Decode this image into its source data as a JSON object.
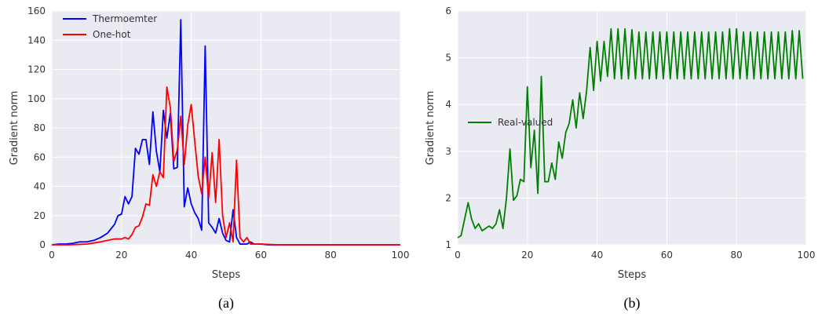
{
  "chart_data": [
    {
      "type": "line",
      "caption": "(a)",
      "xlabel": "Steps",
      "ylabel": "Gradient norm",
      "xlim": [
        0,
        100
      ],
      "ylim": [
        0,
        160
      ],
      "xticks": [
        0,
        20,
        40,
        60,
        80,
        100
      ],
      "yticks": [
        0,
        20,
        40,
        60,
        80,
        100,
        120,
        140,
        160
      ],
      "grid": true,
      "legend": "top-left",
      "series": [
        {
          "name": "Thermoemter",
          "color": "#0000ff",
          "x": [
            0,
            2,
            4,
            6,
            8,
            10,
            12,
            14,
            16,
            18,
            19,
            20,
            21,
            22,
            23,
            24,
            25,
            26,
            27,
            28,
            29,
            30,
            31,
            32,
            33,
            34,
            35,
            36,
            37,
            38,
            39,
            40,
            41,
            42,
            43,
            44,
            45,
            46,
            47,
            48,
            49,
            50,
            51,
            52,
            53,
            54,
            55,
            56,
            57,
            58,
            60,
            62,
            65,
            70,
            80,
            90,
            100
          ],
          "values": [
            0,
            0.5,
            0.5,
            1,
            2,
            2,
            3,
            5,
            8,
            14,
            20,
            21,
            33,
            28,
            33,
            66,
            62,
            72,
            72,
            55,
            91,
            64,
            50,
            92,
            73,
            90,
            52,
            53,
            154,
            26,
            39,
            28,
            22,
            18,
            10,
            136,
            15,
            12,
            8,
            18,
            8,
            3,
            2,
            24,
            5,
            0.5,
            0.5,
            0.5,
            2,
            0.5,
            0.5,
            0,
            0,
            0,
            0,
            0,
            0
          ]
        },
        {
          "name": "One-hot",
          "color": "#ff0000",
          "x": [
            0,
            5,
            10,
            14,
            16,
            18,
            20,
            21,
            22,
            23,
            24,
            25,
            26,
            27,
            28,
            29,
            30,
            31,
            32,
            33,
            34,
            35,
            36,
            37,
            38,
            39,
            40,
            41,
            42,
            43,
            44,
            45,
            46,
            47,
            48,
            49,
            50,
            51,
            52,
            53,
            54,
            55,
            56,
            57,
            60,
            65,
            70,
            80,
            90,
            100
          ],
          "values": [
            0,
            0,
            0.5,
            2,
            3,
            4,
            4,
            5,
            4,
            7,
            12,
            13,
            19,
            28,
            27,
            48,
            40,
            50,
            46,
            108,
            94,
            57,
            65,
            88,
            55,
            82,
            96,
            71,
            47,
            35,
            60,
            32,
            63,
            29,
            72,
            20,
            5,
            15,
            2,
            58,
            5,
            2,
            5,
            0.5,
            0.5,
            0,
            0,
            0,
            0,
            0
          ]
        }
      ]
    },
    {
      "type": "line",
      "caption": "(b)",
      "xlabel": "Steps",
      "ylabel": "Gradient norm",
      "xlim": [
        0,
        100
      ],
      "ylim": [
        1,
        6
      ],
      "xticks": [
        0,
        20,
        40,
        60,
        80,
        100
      ],
      "yticks": [
        1,
        2,
        3,
        4,
        5,
        6
      ],
      "grid": true,
      "legend": "center-left",
      "series": [
        {
          "name": "Real-valued",
          "color": "#008000",
          "x": [
            0,
            1,
            2,
            3,
            4,
            5,
            6,
            7,
            8,
            9,
            10,
            11,
            12,
            13,
            14,
            15,
            16,
            17,
            18,
            19,
            20,
            21,
            22,
            23,
            24,
            25,
            26,
            27,
            28,
            29,
            30,
            31,
            32,
            33,
            34,
            35,
            36,
            37,
            38,
            39,
            40,
            41,
            42,
            43,
            44,
            45,
            46,
            47,
            48,
            49,
            50,
            51,
            52,
            53,
            54,
            55,
            56,
            57,
            58,
            59,
            60,
            61,
            62,
            63,
            64,
            65,
            66,
            67,
            68,
            69,
            70,
            71,
            72,
            73,
            74,
            75,
            76,
            77,
            78,
            79,
            80,
            81,
            82,
            83,
            84,
            85,
            86,
            87,
            88,
            89,
            90,
            91,
            92,
            93,
            94,
            95,
            96,
            97,
            98,
            99
          ],
          "values": [
            1.15,
            1.2,
            1.55,
            1.9,
            1.55,
            1.35,
            1.45,
            1.3,
            1.35,
            1.4,
            1.35,
            1.45,
            1.75,
            1.35,
            2.0,
            3.05,
            1.95,
            2.05,
            2.4,
            2.35,
            4.38,
            2.65,
            3.45,
            2.1,
            4.6,
            2.35,
            2.35,
            2.75,
            2.4,
            3.2,
            2.85,
            3.4,
            3.6,
            4.1,
            3.5,
            4.25,
            3.7,
            4.3,
            5.22,
            4.3,
            5.35,
            4.5,
            5.35,
            4.6,
            5.62,
            4.55,
            5.62,
            4.55,
            5.62,
            4.55,
            5.6,
            4.55,
            5.55,
            4.55,
            5.55,
            4.55,
            5.55,
            4.55,
            5.55,
            4.55,
            5.55,
            4.55,
            5.55,
            4.55,
            5.55,
            4.55,
            5.55,
            4.55,
            5.55,
            4.55,
            5.55,
            4.55,
            5.55,
            4.55,
            5.55,
            4.55,
            5.55,
            4.55,
            5.62,
            4.55,
            5.62,
            4.55,
            5.55,
            4.55,
            5.55,
            4.55,
            5.55,
            4.55,
            5.55,
            4.55,
            5.55,
            4.55,
            5.55,
            4.55,
            5.55,
            4.55,
            5.58,
            4.55,
            5.58,
            4.55
          ]
        }
      ]
    }
  ]
}
